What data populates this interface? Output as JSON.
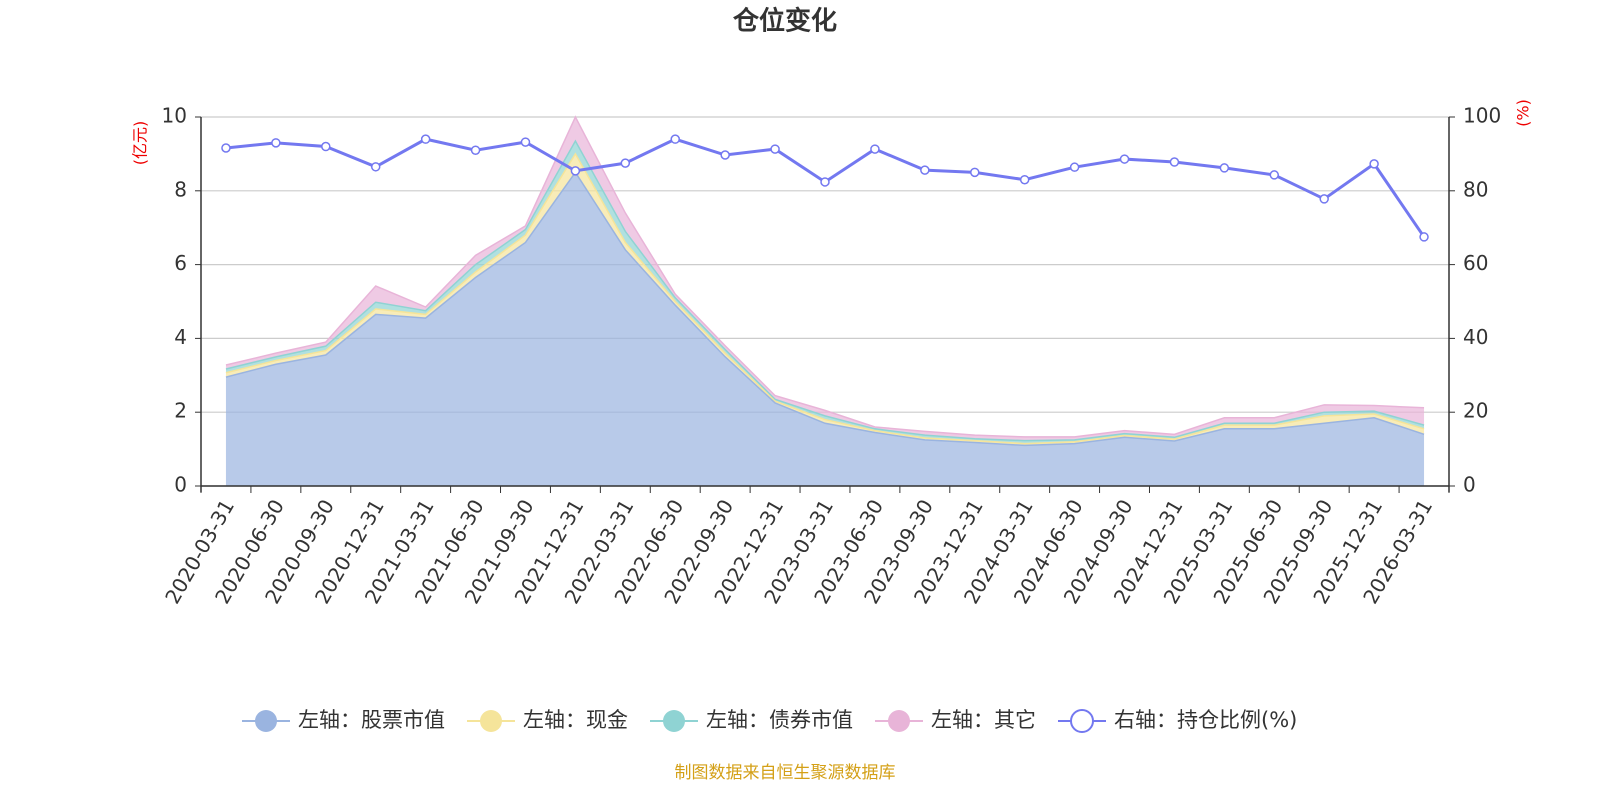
{
  "chart_data": {
    "type": "area",
    "stacked": true,
    "title": "仓位变化",
    "y_label": "(亿元)",
    "y2_label": "(%)",
    "source": "制图数据来自恒生聚源数据库",
    "grid": true,
    "legend": "bottom",
    "categories": [
      "2020-03-31",
      "2020-06-30",
      "2020-09-30",
      "2020-12-31",
      "2021-03-31",
      "2021-06-30",
      "2021-09-30",
      "2021-12-31",
      "2022-03-31",
      "2022-06-30",
      "2022-09-30",
      "2022-12-31",
      "2023-03-31",
      "2023-06-30",
      "2023-09-30",
      "2023-12-31",
      "2024-03-31",
      "2024-06-30",
      "2024-09-30",
      "2024-12-31",
      "2025-03-31",
      "2025-06-30",
      "2025-09-30",
      "2025-12-31",
      "2026-03-31"
    ],
    "ylim": [
      0,
      10
    ],
    "yticks": [
      0,
      2,
      4,
      6,
      8,
      10
    ],
    "y2lim": [
      0,
      100
    ],
    "y2ticks": [
      0,
      20,
      40,
      60,
      80,
      100
    ],
    "series": [
      {
        "name": "左轴：股票市值",
        "color": "#9ab4e0",
        "values": [
          2.95,
          3.3,
          3.55,
          4.65,
          4.55,
          5.65,
          6.6,
          8.5,
          6.4,
          4.9,
          3.5,
          2.25,
          1.7,
          1.45,
          1.25,
          1.18,
          1.1,
          1.15,
          1.32,
          1.22,
          1.55,
          1.55,
          1.7,
          1.85,
          1.4
        ]
      },
      {
        "name": "左轴：现金",
        "color": "#f5e49a",
        "values": [
          0.12,
          0.1,
          0.12,
          0.15,
          0.1,
          0.15,
          0.2,
          0.5,
          0.2,
          0.1,
          0.1,
          0.05,
          0.1,
          0.05,
          0.05,
          0.05,
          0.05,
          0.05,
          0.05,
          0.05,
          0.1,
          0.1,
          0.2,
          0.1,
          0.15
        ]
      },
      {
        "name": "左轴：债券市值",
        "color": "#8fd3d3",
        "values": [
          0.1,
          0.1,
          0.12,
          0.18,
          0.1,
          0.2,
          0.15,
          0.35,
          0.3,
          0.1,
          0.1,
          0.05,
          0.1,
          0.05,
          0.08,
          0.05,
          0.08,
          0.05,
          0.05,
          0.05,
          0.05,
          0.05,
          0.1,
          0.08,
          0.1
        ]
      },
      {
        "name": "左轴：其它",
        "color": "#e8b4d8",
        "values": [
          0.11,
          0.1,
          0.11,
          0.44,
          0.1,
          0.25,
          0.1,
          0.65,
          0.5,
          0.1,
          0.1,
          0.1,
          0.15,
          0.05,
          0.1,
          0.1,
          0.1,
          0.08,
          0.08,
          0.08,
          0.15,
          0.15,
          0.2,
          0.15,
          0.47
        ]
      },
      {
        "name": "右轴：持仓比例(%)",
        "color": "#7378f0",
        "type": "line",
        "axis": "y2",
        "values": [
          91.6,
          93,
          92,
          86.5,
          94,
          91,
          93.2,
          85.4,
          87.5,
          94,
          89.7,
          91.3,
          82.4,
          91.3,
          85.6,
          85,
          83,
          86.4,
          88.6,
          87.8,
          86.2,
          84.3,
          77.8,
          87.3,
          67.5
        ]
      }
    ]
  }
}
